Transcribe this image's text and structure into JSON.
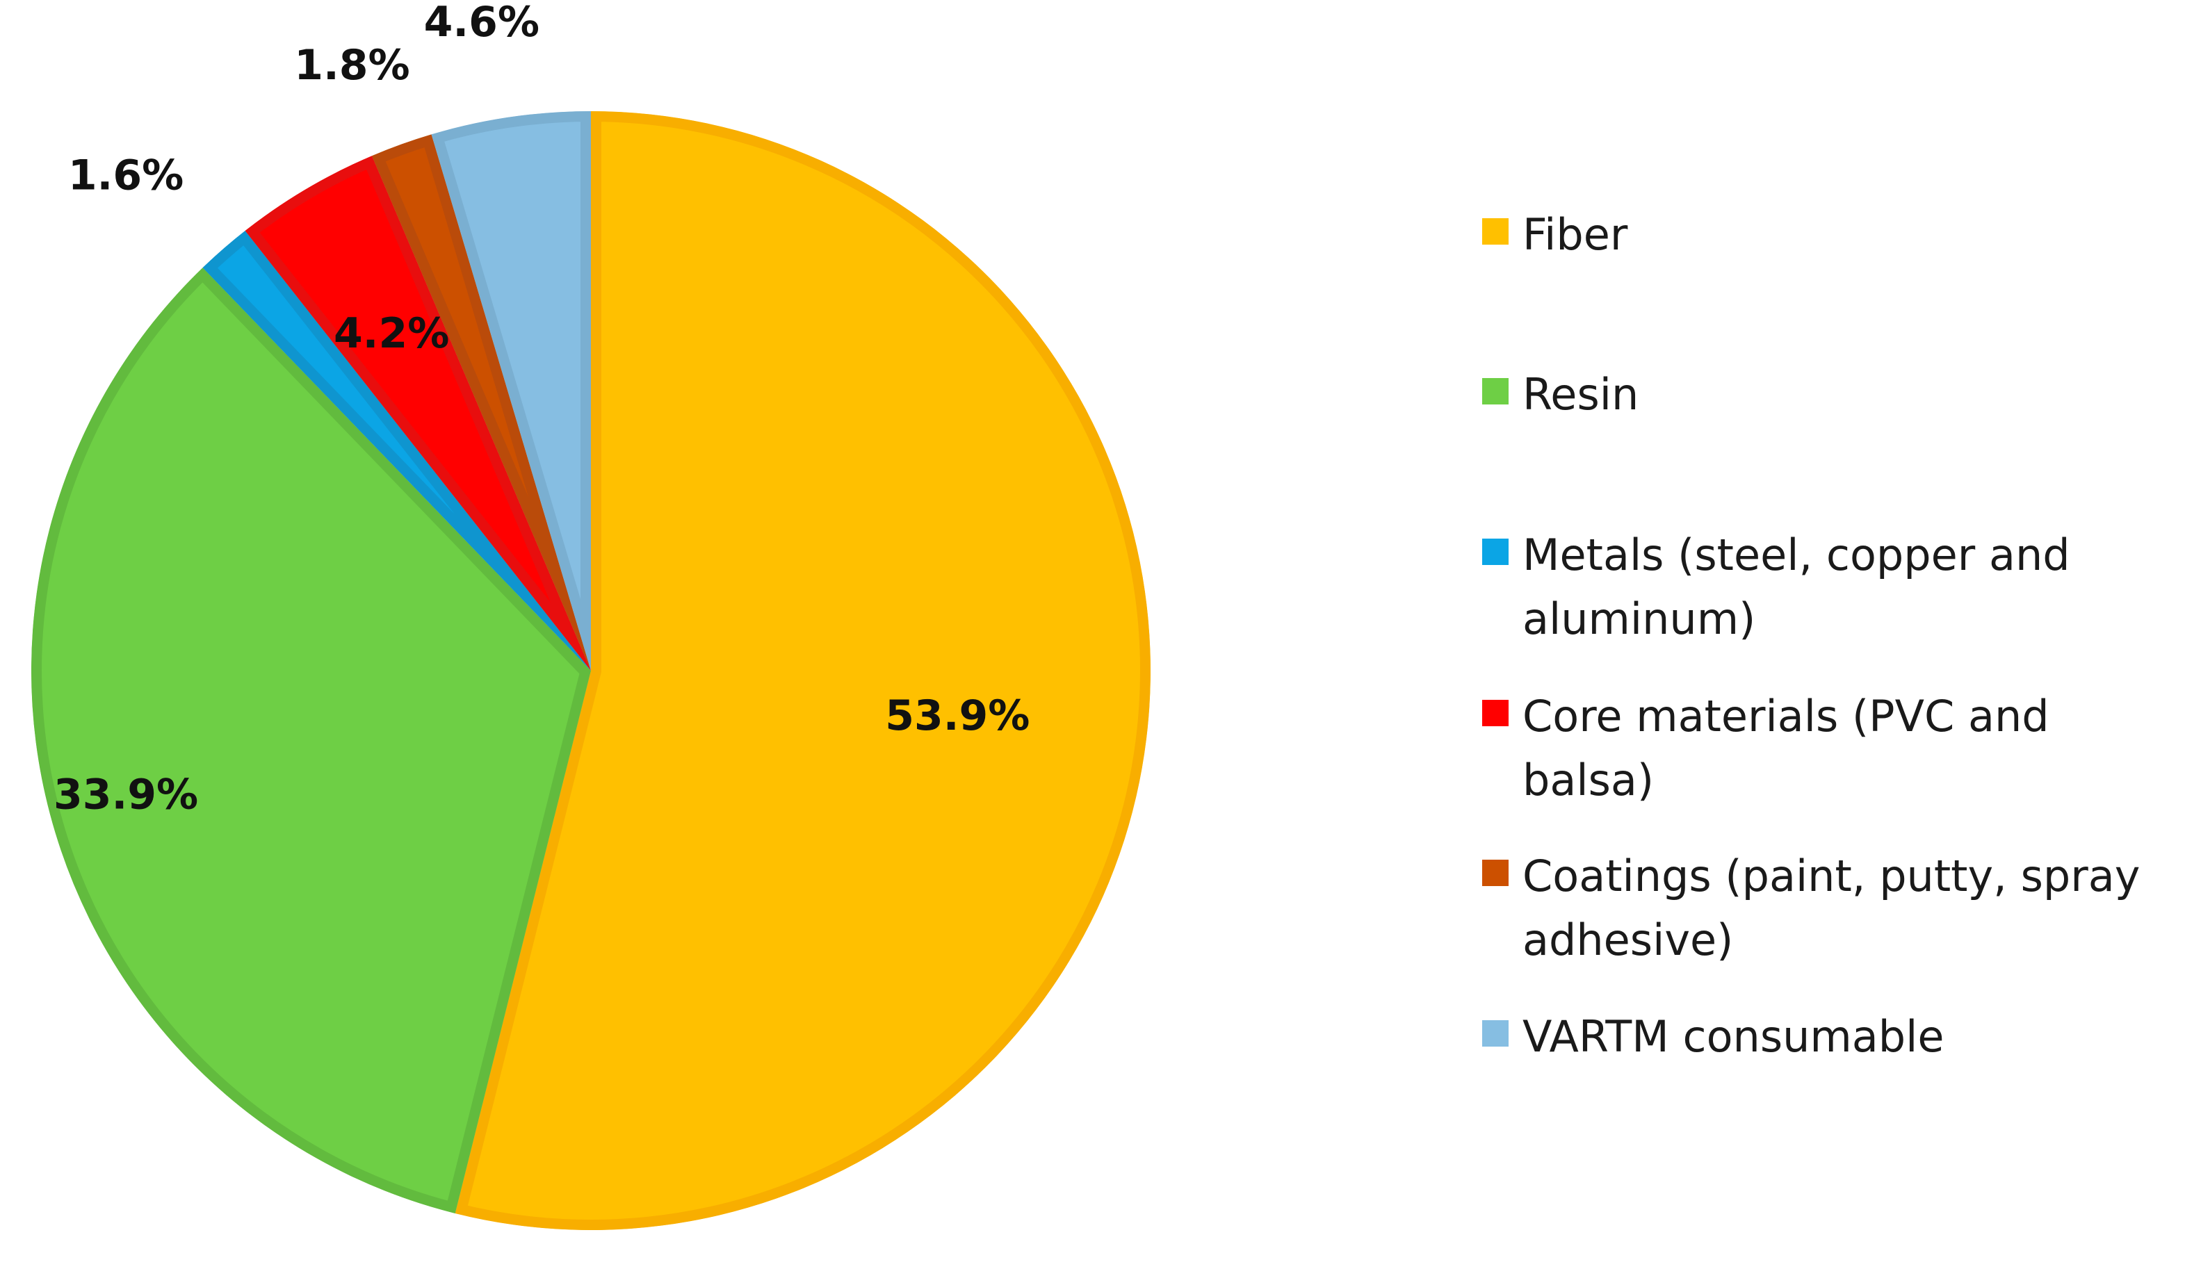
{
  "chart_data": {
    "type": "pie",
    "title": "",
    "start_angle_deg": 0,
    "direction": "clockwise",
    "legend_position": "right",
    "series": [
      {
        "name": "Fiber",
        "value": 53.9,
        "label": "53.9%",
        "color": "#FFC000",
        "border": "#F8AE00"
      },
      {
        "name": "Resin",
        "value": 33.9,
        "label": "33.9%",
        "color": "#6ECF45",
        "border": "#62BB3E"
      },
      {
        "name": "Metals (steel, copper and aluminum)",
        "value": 1.6,
        "label": "1.6%",
        "color": "#0BA5E5",
        "border": "#0F95CF"
      },
      {
        "name": "Core materials (PVC and balsa)",
        "value": 4.2,
        "label": "4.2%",
        "color": "#FF0000",
        "border": "#E80E0E"
      },
      {
        "name": "Coatings (paint, putty, spray adhesive)",
        "value": 1.8,
        "label": "1.8%",
        "color": "#CC5000",
        "border": "#BA4B0A"
      },
      {
        "name": "VARTM consumable",
        "value": 4.6,
        "label": "4.6%",
        "color": "#86BEE2",
        "border": "#7AAFD1"
      }
    ]
  }
}
